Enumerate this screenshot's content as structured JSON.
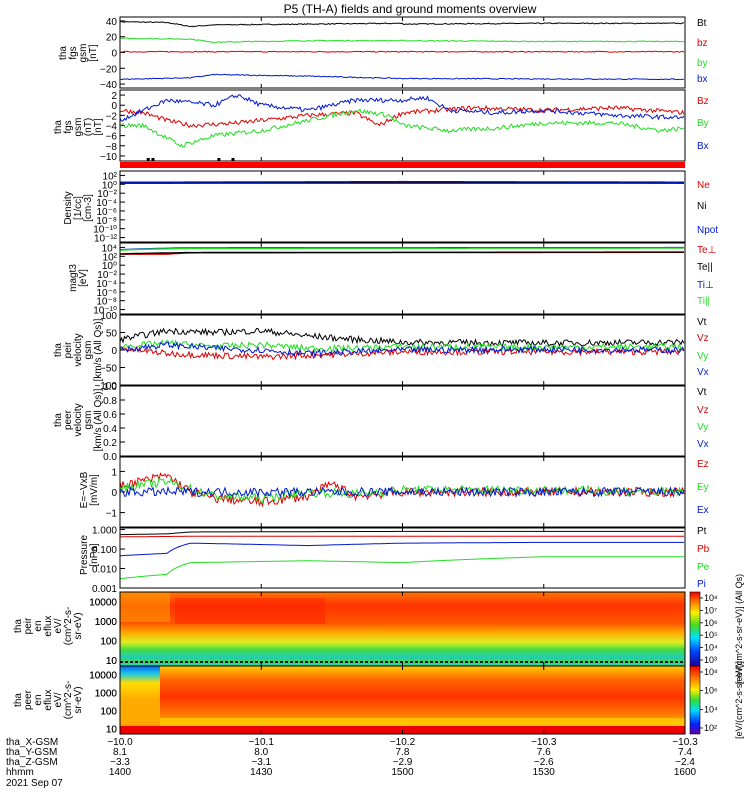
{
  "title": "P5 (TH-A) fields and ground moments overview",
  "colors": {
    "black": "#000000",
    "red": "#e00000",
    "green": "#22dd22",
    "blue": "#0018d0"
  },
  "chart_data": [
    {
      "type": "line",
      "id": "p1",
      "ylabel": [
        "tha",
        "fgs",
        "gsm",
        "[nT]"
      ],
      "ylim": [
        -45,
        45
      ],
      "yticks": [
        "40",
        "20",
        "0",
        "−20",
        "−40"
      ],
      "ytick_values": [
        40,
        20,
        0,
        -20,
        -40
      ],
      "grid": false,
      "legend_position": "right",
      "series": [
        {
          "name": "Bt",
          "color": "#000000",
          "x": [
            1400,
            1410,
            1415,
            1420,
            1440,
            1460,
            1500,
            1530,
            1600
          ],
          "values": [
            39,
            38,
            33,
            35,
            36,
            37,
            36,
            37,
            37
          ]
        },
        {
          "name": "bz",
          "color": "#e00000",
          "x": [
            1400,
            1600
          ],
          "values": [
            1,
            1
          ]
        },
        {
          "name": "by",
          "color": "#22dd22",
          "x": [
            1400,
            1415,
            1420,
            1440,
            1500,
            1530,
            1600
          ],
          "values": [
            18,
            17,
            13,
            15,
            15,
            14,
            14
          ]
        },
        {
          "name": "bx",
          "color": "#0018d0",
          "x": [
            1400,
            1415,
            1420,
            1440,
            1500,
            1600
          ],
          "values": [
            -34,
            -32,
            -28,
            -30,
            -33,
            -34
          ]
        }
      ]
    },
    {
      "type": "line",
      "id": "p2",
      "ylabel": [
        "tha",
        "fgs",
        "gsm",
        "(nT)",
        "[nT]"
      ],
      "ylim": [
        -11,
        3
      ],
      "yticks": [
        "2",
        "0",
        "−2",
        "−4",
        "−6",
        "−8",
        "−10"
      ],
      "ytick_values": [
        2,
        0,
        -2,
        -4,
        -6,
        -8,
        -10
      ],
      "grid": false,
      "legend_position": "right",
      "series": [
        {
          "name": "Bz",
          "color": "#e00000",
          "x": [
            1400,
            1405,
            1410,
            1415,
            1425,
            1440,
            1450,
            1455,
            1500,
            1515,
            1530,
            1545,
            1600
          ],
          "values": [
            -1,
            -1.5,
            -3,
            -4,
            -3.5,
            -2,
            -1.5,
            -4,
            -1.5,
            -0.5,
            -1,
            -0.5,
            -1.5
          ]
        },
        {
          "name": "By",
          "color": "#22dd22",
          "x": [
            1400,
            1405,
            1410,
            1413,
            1420,
            1430,
            1440,
            1450,
            1457,
            1500,
            1510,
            1520,
            1530,
            1545,
            1555,
            1600
          ],
          "values": [
            -4,
            -4,
            -6.5,
            -8,
            -6,
            -5,
            -3,
            -1,
            -2,
            -4,
            -5,
            -4.5,
            -3.5,
            -3.5,
            -5,
            -4.5
          ]
        },
        {
          "name": "Bx",
          "color": "#0018d0",
          "x": [
            1400,
            1405,
            1410,
            1420,
            1425,
            1430,
            1440,
            1450,
            1500,
            1505,
            1510,
            1520,
            1530,
            1545,
            1600
          ],
          "values": [
            -3,
            -1,
            1,
            0,
            2,
            0,
            -1,
            1,
            1,
            1.5,
            -1,
            -1.5,
            -1,
            -2,
            -2.5
          ]
        }
      ],
      "flags": [
        1406,
        1407,
        1421,
        1424
      ]
    },
    {
      "type": "line",
      "id": "p3",
      "ylabel": [
        "Density",
        "[1/cc]",
        "[cm-3]"
      ],
      "log": true,
      "ylim": [
        1e-13,
        1000
      ],
      "yticks": [
        "10²",
        "10⁰",
        "10⁻²",
        "10⁻⁴",
        "10⁻⁶",
        "10⁻⁸",
        "10⁻¹⁰",
        "10⁻¹²"
      ],
      "ytick_values": [
        100,
        1,
        0.01,
        0.0001,
        1e-06,
        1e-08,
        1e-10,
        1e-12
      ],
      "grid": false,
      "legend_position": "right",
      "series": [
        {
          "name": "Ne",
          "color": "#e00000",
          "x": [
            1400,
            1410,
            1500,
            1600
          ],
          "values": [
            2,
            2,
            3,
            2
          ]
        },
        {
          "name": "Ni",
          "color": "#000000",
          "x": [
            1400,
            1600
          ],
          "values": [
            2,
            2
          ]
        },
        {
          "name": "Npot",
          "color": "#0018d0",
          "x": [
            1400,
            1410,
            1500,
            1600
          ],
          "values": [
            3,
            3,
            4,
            3
          ]
        }
      ]
    },
    {
      "type": "line",
      "id": "p4",
      "ylabel": [
        "magt3",
        "[eV]"
      ],
      "log": true,
      "ylim": [
        1e-11,
        100000
      ],
      "yticks": [
        "10⁴",
        "10²",
        "10⁰",
        "10⁻²",
        "10⁻⁴",
        "10⁻⁶",
        "10⁻⁸",
        "10⁻¹⁰"
      ],
      "ytick_values": [
        10000,
        100,
        1,
        0.01,
        0.0001,
        1e-06,
        1e-08,
        1e-10
      ],
      "grid": false,
      "legend_position": "right",
      "series": [
        {
          "name": "Te⊥",
          "color": "#e00000",
          "x": [
            1400,
            1410,
            1415,
            1600
          ],
          "values": [
            300,
            300,
            600,
            800
          ]
        },
        {
          "name": "Te||",
          "color": "#000000",
          "x": [
            1400,
            1415,
            1600
          ],
          "values": [
            350,
            700,
            900
          ]
        },
        {
          "name": "Ti⊥",
          "color": "#0018d0",
          "x": [
            1400,
            1415,
            1600
          ],
          "values": [
            3000,
            8000,
            9000
          ]
        },
        {
          "name": "Ti||",
          "color": "#22dd22",
          "x": [
            1400,
            1415,
            1600
          ],
          "values": [
            2500,
            6000,
            7000
          ]
        }
      ]
    },
    {
      "type": "line",
      "id": "p5",
      "ylabel": [
        "tha",
        "peir",
        "velocity",
        "gsm",
        "[km/s (All Qs)]"
      ],
      "ylim": [
        -100,
        100
      ],
      "yticks": [
        "100",
        "50",
        "0",
        "−50",
        "−100"
      ],
      "ytick_values": [
        100,
        50,
        0,
        -50,
        -100
      ],
      "grid": false,
      "legend_position": "right",
      "series": [
        {
          "name": "Vt",
          "color": "#000000",
          "x": [
            1400,
            1410,
            1420,
            1430,
            1440,
            1450,
            1500,
            1530,
            1600
          ],
          "values": [
            30,
            55,
            50,
            55,
            40,
            30,
            22,
            20,
            22
          ]
        },
        {
          "name": "Vz",
          "color": "#e00000",
          "x": [
            1400,
            1410,
            1420,
            1430,
            1440,
            1450,
            1500,
            1530,
            1600
          ],
          "values": [
            5,
            -10,
            -15,
            -20,
            -15,
            -10,
            -5,
            -5,
            -5
          ]
        },
        {
          "name": "Vy",
          "color": "#22dd22",
          "x": [
            1400,
            1410,
            1420,
            1430,
            1440,
            1450,
            1500,
            1530,
            1600
          ],
          "values": [
            10,
            20,
            10,
            15,
            5,
            5,
            10,
            8,
            10
          ]
        },
        {
          "name": "Vx",
          "color": "#0018d0",
          "x": [
            1400,
            1410,
            1420,
            1430,
            1440,
            1450,
            1500,
            1530,
            1600
          ],
          "values": [
            0,
            15,
            5,
            0,
            -10,
            -5,
            0,
            2,
            0
          ]
        }
      ]
    },
    {
      "type": "line",
      "id": "p6",
      "ylabel": [
        "tha",
        "peer",
        "velocity",
        "gsm",
        "[km/s (All Qs)]"
      ],
      "ylim": [
        0,
        1
      ],
      "yticks": [
        "1.0",
        "0.8",
        "0.6",
        "0.4",
        "0.2",
        "0.0"
      ],
      "ytick_values": [
        1.0,
        0.8,
        0.6,
        0.4,
        0.2,
        0.0
      ],
      "grid": false,
      "legend_position": "right",
      "series": [
        {
          "name": "Vt",
          "color": "#000000",
          "x": [],
          "values": []
        },
        {
          "name": "Vz",
          "color": "#e00000",
          "x": [],
          "values": []
        },
        {
          "name": "Vy",
          "color": "#22dd22",
          "x": [],
          "values": []
        },
        {
          "name": "Vx",
          "color": "#0018d0",
          "x": [],
          "values": []
        }
      ]
    },
    {
      "type": "line",
      "id": "p7",
      "ylabel": [
        "E=−VxB",
        "[mV/m]"
      ],
      "ylim": [
        -1.7,
        1.7
      ],
      "yticks": [
        "1",
        "0",
        "−1"
      ],
      "ytick_values": [
        1,
        0,
        -1
      ],
      "grid": false,
      "legend_position": "right",
      "series": [
        {
          "name": "Ez",
          "color": "#e00000",
          "x": [
            1400,
            1410,
            1415,
            1420,
            1430,
            1440,
            1445,
            1450,
            1500,
            1530,
            1600
          ],
          "values": [
            0.3,
            0.8,
            0,
            -0.3,
            -0.5,
            -0.2,
            0.4,
            -0.2,
            0,
            0,
            0
          ]
        },
        {
          "name": "Ey",
          "color": "#22dd22",
          "x": [
            1400,
            1410,
            1420,
            1430,
            1440,
            1450,
            1500,
            1530,
            1600
          ],
          "values": [
            0.2,
            0.5,
            -0.2,
            -0.3,
            0,
            -0.1,
            0.1,
            0.1,
            0
          ]
        },
        {
          "name": "Ex",
          "color": "#0018d0",
          "x": [
            1400,
            1600
          ],
          "values": [
            0,
            0
          ]
        }
      ]
    },
    {
      "type": "line",
      "id": "p8",
      "ylabel": [
        "Pressure",
        "[nPa]"
      ],
      "log": true,
      "ylim": [
        0.001,
        1.2
      ],
      "yticks": [
        "1.000",
        "0.100",
        "0.010",
        "0.001"
      ],
      "ytick_values": [
        1,
        0.1,
        0.01,
        0.001
      ],
      "grid": false,
      "legend_position": "right",
      "series": [
        {
          "name": "Pt",
          "color": "#000000",
          "x": [
            1400,
            1410,
            1415,
            1500,
            1600
          ],
          "values": [
            0.55,
            0.6,
            0.75,
            0.8,
            0.8
          ]
        },
        {
          "name": "Pb",
          "color": "#e00000",
          "x": [
            1400,
            1415,
            1500,
            1600
          ],
          "values": [
            0.42,
            0.45,
            0.45,
            0.45
          ]
        },
        {
          "name": "Pe",
          "color": "#22dd22",
          "x": [
            1400,
            1410,
            1415,
            1440,
            1500,
            1530,
            1600
          ],
          "values": [
            0.003,
            0.005,
            0.02,
            0.025,
            0.02,
            0.04,
            0.04
          ]
        },
        {
          "name": "Pi",
          "color": "#0018d0",
          "x": [
            1400,
            1410,
            1415,
            1440,
            1500,
            1530,
            1600
          ],
          "values": [
            0.045,
            0.06,
            0.2,
            0.15,
            0.2,
            0.22,
            0.22
          ]
        }
      ]
    },
    {
      "type": "heatmap",
      "id": "p9",
      "ylabel": [
        "tha",
        "peir",
        "en",
        "eflux",
        "eV/",
        "(cm^2-s-",
        "sr-eV)"
      ],
      "log": true,
      "ylim": [
        5,
        30000
      ],
      "yticks": [
        "10000",
        "1000",
        "100",
        "10"
      ],
      "ytick_values": [
        10000,
        1000,
        100,
        10
      ]
    },
    {
      "type": "heatmap",
      "id": "p10",
      "ylabel": [
        "tha",
        "peer",
        "en",
        "eflux",
        "eV/",
        "(cm^2-s-",
        "sr-eV)"
      ],
      "log": true,
      "ylim": [
        5,
        30000
      ],
      "yticks": [
        "10000",
        "1000",
        "100",
        "10"
      ],
      "ytick_values": [
        10000,
        1000,
        100,
        10
      ]
    }
  ],
  "colorbars": [
    {
      "ticks": [
        "10⁸",
        "10⁷",
        "10⁶",
        "10⁵",
        "10⁴",
        "10³"
      ],
      "label": "[eV/(cm^2-s-sr-eV)] (All Qs)"
    },
    {
      "ticks": [
        "10⁸",
        "10⁶",
        "10⁴",
        "10²"
      ],
      "label": "[eV/(cm^2-s-sr-eV)]"
    }
  ],
  "x_axis": {
    "range": [
      1400,
      1600
    ],
    "tick_positions": [
      1400,
      1430,
      1500,
      1530,
      1600
    ],
    "rows": [
      {
        "label": "tha_X-GSM",
        "values": [
          "−10.0",
          "−10.1",
          "−10.2",
          "−10.3",
          "−10.3"
        ]
      },
      {
        "label": "tha_Y-GSM",
        "values": [
          "8.1",
          "8.0",
          "7.8",
          "7.6",
          "7.4"
        ]
      },
      {
        "label": "tha_Z-GSM",
        "values": [
          "−3.3",
          "−3.1",
          "−2.9",
          "−2.6",
          "−2.4"
        ]
      },
      {
        "label": "hhmm",
        "values": [
          "1400",
          "1430",
          "1500",
          "1530",
          "1600"
        ]
      }
    ],
    "date": "2021 Sep 07"
  }
}
